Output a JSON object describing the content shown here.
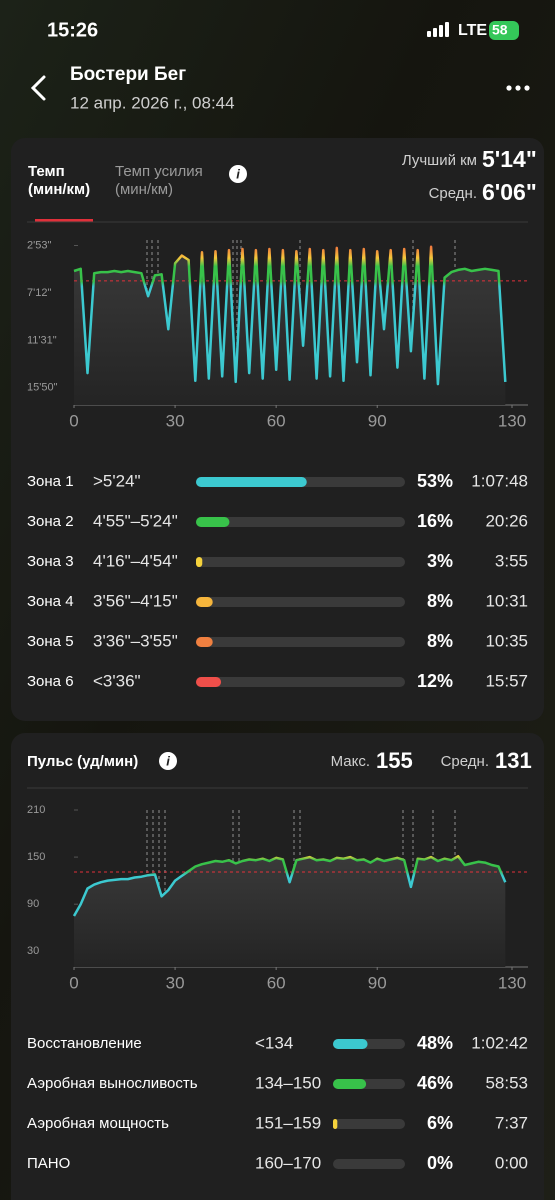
{
  "status": {
    "time": "15:26",
    "network": "LTE",
    "battery": "58"
  },
  "header": {
    "title": "Бостери Бег",
    "subtitle": "12 апр. 2026 г., 08:44"
  },
  "pace": {
    "tabs": [
      {
        "name": "Темп",
        "unit": "(мин/км)"
      },
      {
        "name": "Темп усилия",
        "unit": "(мин/км)"
      }
    ],
    "best_label": "Лучший км",
    "best": "5'14\"",
    "avg_label": "Средн.",
    "avg": {
      "value": 6.1,
      "label": "6'06\""
    },
    "chart": {
      "type": "line",
      "xlim": [
        0,
        130
      ],
      "xticks": [
        0,
        30,
        60,
        90,
        130
      ],
      "ylim": [
        17.4,
        2.2
      ],
      "yticks": [
        {
          "value": 2.883,
          "label": "2'53\""
        },
        {
          "value": 7.2,
          "label": "7'12\""
        },
        {
          "value": 11.517,
          "label": "11'31\""
        },
        {
          "value": 15.833,
          "label": "15'50\""
        }
      ],
      "x": [
        0,
        2,
        4,
        6,
        8,
        10,
        12,
        14,
        16,
        18,
        20,
        22,
        24,
        26,
        28,
        30,
        32,
        34,
        36,
        38,
        40,
        42,
        44,
        46,
        48,
        50,
        52,
        54,
        56,
        58,
        60,
        62,
        64,
        66,
        68,
        70,
        72,
        74,
        76,
        78,
        80,
        82,
        84,
        86,
        88,
        90,
        92,
        94,
        96,
        98,
        100,
        102,
        104,
        106,
        108,
        110,
        112,
        114,
        116,
        118,
        120,
        122,
        124,
        126,
        128
      ],
      "values": [
        5.2,
        5.0,
        14.5,
        5.4,
        5.3,
        5.3,
        5.2,
        5.3,
        5.2,
        5.3,
        5.4,
        7.5,
        5.6,
        5.5,
        10.5,
        4.5,
        3.8,
        4.2,
        15.2,
        3.5,
        15.0,
        3.4,
        14.8,
        3.3,
        15.3,
        3.2,
        14.5,
        3.3,
        15.0,
        3.2,
        14.2,
        3.3,
        15.1,
        3.4,
        12.0,
        3.2,
        15.0,
        3.3,
        14.8,
        3.1,
        15.2,
        3.3,
        13.5,
        3.2,
        14.7,
        3.4,
        10.5,
        3.3,
        14.0,
        3.2,
        12.5,
        3.3,
        15.0,
        3.0,
        15.5,
        5.8,
        5.3,
        5.1,
        5.0,
        5.2,
        5.1,
        5.0,
        5.1,
        5.2,
        15.3
      ]
    },
    "zones": [
      {
        "name": "Зона 1",
        "range": ">5'24\"",
        "percent": 53,
        "percent_label": "53%",
        "time": "1:07:48",
        "color": "#3cc9d0"
      },
      {
        "name": "Зона 2",
        "range": "4'55\"–5'24\"",
        "percent": 16,
        "percent_label": "16%",
        "time": "20:26",
        "color": "#38c24a"
      },
      {
        "name": "Зона 3",
        "range": "4'16\"–4'54\"",
        "percent": 3,
        "percent_label": "3%",
        "time": "3:55",
        "color": "#f5d23c"
      },
      {
        "name": "Зона 4",
        "range": "3'56\"–4'15\"",
        "percent": 8,
        "percent_label": "8%",
        "time": "10:31",
        "color": "#f5b53c"
      },
      {
        "name": "Зона 5",
        "range": "3'36\"–3'55\"",
        "percent": 8,
        "percent_label": "8%",
        "time": "10:35",
        "color": "#f08040"
      },
      {
        "name": "Зона 6",
        "range": "<3'36\"",
        "percent": 12,
        "percent_label": "12%",
        "time": "15:57",
        "color": "#ef4f4a"
      }
    ]
  },
  "hr": {
    "title": "Пульс (уд/мин)",
    "max_label": "Макс.",
    "max": 155,
    "avg_label": "Средн.",
    "avg": 131,
    "chart": {
      "type": "line",
      "xlim": [
        0,
        130
      ],
      "xticks": [
        0,
        30,
        60,
        90,
        130
      ],
      "ylim": [
        10,
        210
      ],
      "yticks": [
        210,
        150,
        90,
        30
      ],
      "x": [
        0,
        2,
        4,
        6,
        8,
        10,
        12,
        14,
        16,
        18,
        20,
        22,
        24,
        26,
        28,
        30,
        32,
        34,
        36,
        38,
        40,
        42,
        44,
        46,
        48,
        50,
        52,
        54,
        56,
        58,
        60,
        62,
        64,
        66,
        68,
        70,
        72,
        74,
        76,
        78,
        80,
        82,
        84,
        86,
        88,
        90,
        92,
        94,
        96,
        98,
        100,
        102,
        104,
        106,
        108,
        110,
        112,
        114,
        116,
        118,
        120,
        122,
        124,
        126,
        128
      ],
      "values": [
        75,
        90,
        110,
        115,
        118,
        120,
        121,
        122,
        122,
        124,
        125,
        127,
        128,
        100,
        108,
        120,
        126,
        132,
        138,
        141,
        143,
        145,
        144,
        146,
        142,
        145,
        147,
        146,
        148,
        145,
        149,
        147,
        118,
        146,
        148,
        150,
        146,
        147,
        145,
        149,
        148,
        150,
        146,
        147,
        143,
        148,
        145,
        147,
        149,
        146,
        112,
        148,
        147,
        150,
        145,
        148,
        146,
        151,
        140,
        142,
        144,
        143,
        140,
        138,
        118
      ]
    },
    "zones": [
      {
        "name": "Восстановление",
        "range": "<134",
        "percent": 48,
        "percent_label": "48%",
        "time": "1:02:42",
        "color": "#3cc9d0"
      },
      {
        "name": "Аэробная выносливость",
        "range": "134–150",
        "percent": 46,
        "percent_label": "46%",
        "time": "58:53",
        "color": "#38c24a"
      },
      {
        "name": "Аэробная мощность",
        "range": "151–159",
        "percent": 6,
        "percent_label": "6%",
        "time": "7:37",
        "color": "#f5d23c"
      },
      {
        "name": "ПАНО",
        "range": "160–170",
        "percent": 0,
        "percent_label": "0%",
        "time": "0:00",
        "color": "#f5b53c"
      }
    ]
  }
}
